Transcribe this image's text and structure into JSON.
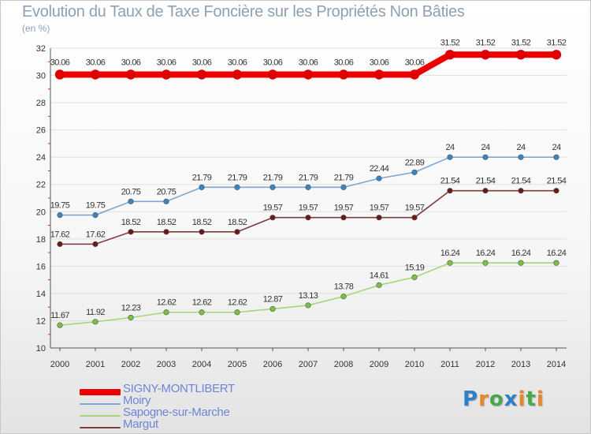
{
  "title": "Evolution du Taux de Taxe Foncière sur les Propriétés Non Bâties",
  "subtitle": "(en %)",
  "logo": {
    "text": "Proxiti",
    "letter_colors": [
      "#2f7fc8",
      "#e8862a",
      "#4aa84a",
      "#2f7fc8",
      "#e8862a",
      "#4aa84a",
      "#e8862a"
    ]
  },
  "colors": {
    "grid": "#e0e0e0",
    "axis": "#555555",
    "tick_text": "#333333",
    "value_text": "#333333"
  },
  "chart_data": {
    "type": "line",
    "title": "Evolution du Taux de Taxe Foncière sur les Propriétés Non Bâties",
    "ylabel": "(en %)",
    "xlabel": "",
    "ylim": [
      10,
      32
    ],
    "yticks": [
      10,
      12,
      14,
      16,
      18,
      20,
      22,
      24,
      26,
      28,
      30,
      32
    ],
    "grid": true,
    "legend_position": "bottom-left",
    "x": [
      "2000",
      "2001",
      "2002",
      "2003",
      "2004",
      "2005",
      "2006",
      "2007",
      "2008",
      "2009",
      "2010",
      "2011",
      "2012",
      "2013",
      "2014"
    ],
    "series": [
      {
        "name": "SIGNY-MONTLIBERT",
        "color": "#ee0000",
        "marker": "#dd0000",
        "emphasis": true,
        "values": [
          30.06,
          30.06,
          30.06,
          30.06,
          30.06,
          30.06,
          30.06,
          30.06,
          30.06,
          30.06,
          30.06,
          31.52,
          31.52,
          31.52,
          31.52
        ],
        "labels": [
          "30.06",
          "30.06",
          "30.06",
          "30.06",
          "30.06",
          "30.06",
          "30.06",
          "30.06",
          "30.06",
          "30.06",
          "30.06",
          "31.52",
          "31.52",
          "31.52",
          "31.52"
        ]
      },
      {
        "name": "Moiry",
        "color": "#7ba7d2",
        "marker": "#3b84c4",
        "emphasis": false,
        "values": [
          19.75,
          19.75,
          20.75,
          20.75,
          21.79,
          21.79,
          21.79,
          21.79,
          21.79,
          22.44,
          22.89,
          24,
          24,
          24,
          24
        ],
        "labels": [
          "19.75",
          "19.75",
          "20.75",
          "20.75",
          "21.79",
          "21.79",
          "21.79",
          "21.79",
          "21.79",
          "22.44",
          "22.89",
          "24",
          "24",
          "24",
          "24"
        ]
      },
      {
        "name": "Sapogne-sur-Marche",
        "color": "#a6d67a",
        "marker": "#7cc043",
        "emphasis": false,
        "values": [
          11.67,
          11.92,
          12.23,
          12.62,
          12.62,
          12.62,
          12.87,
          13.13,
          13.78,
          14.61,
          15.19,
          16.24,
          16.24,
          16.24,
          16.24
        ],
        "labels": [
          "11.67",
          "11.92",
          "12.23",
          "12.62",
          "12.62",
          "12.62",
          "12.87",
          "13.13",
          "13.78",
          "14.61",
          "15.19",
          "16.24",
          "16.24",
          "16.24",
          "16.24"
        ]
      },
      {
        "name": "Margut",
        "color": "#7d3c3c",
        "marker": "#6a1a1a",
        "emphasis": false,
        "values": [
          17.62,
          17.62,
          18.52,
          18.52,
          18.52,
          18.52,
          19.57,
          19.57,
          19.57,
          19.57,
          19.57,
          21.54,
          21.54,
          21.54,
          21.54
        ],
        "labels": [
          "17.62",
          "17.62",
          "18.52",
          "18.52",
          "18.52",
          "18.52",
          "19.57",
          "19.57",
          "19.57",
          "19.57",
          "19.57",
          "21.54",
          "21.54",
          "21.54",
          "21.54"
        ]
      }
    ]
  }
}
